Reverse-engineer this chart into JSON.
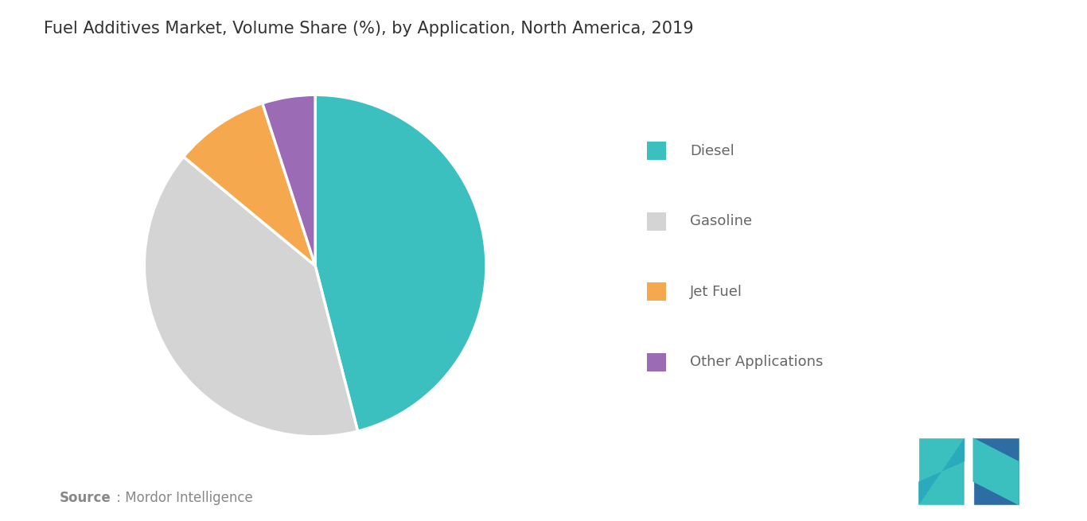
{
  "title": "Fuel Additives Market, Volume Share (%), by Application, North America, 2019",
  "slices": [
    {
      "label": "Diesel",
      "value": 46,
      "color": "#3bbfbf"
    },
    {
      "label": "Gasoline",
      "value": 40,
      "color": "#d4d4d4"
    },
    {
      "label": "Jet Fuel",
      "value": 9,
      "color": "#f5a84e"
    },
    {
      "label": "Other Applications",
      "value": 5,
      "color": "#9b6bb5"
    }
  ],
  "start_angle": 90,
  "background_color": "#ffffff",
  "title_fontsize": 15,
  "legend_fontsize": 13,
  "legend_color": "#666666",
  "title_color": "#333333",
  "source_color": "#888888",
  "logo_teal": "#3bbfbf",
  "logo_teal_dark": "#2aaabb",
  "logo_blue": "#2e6da4",
  "logo_blue_dark": "#1e5a96"
}
